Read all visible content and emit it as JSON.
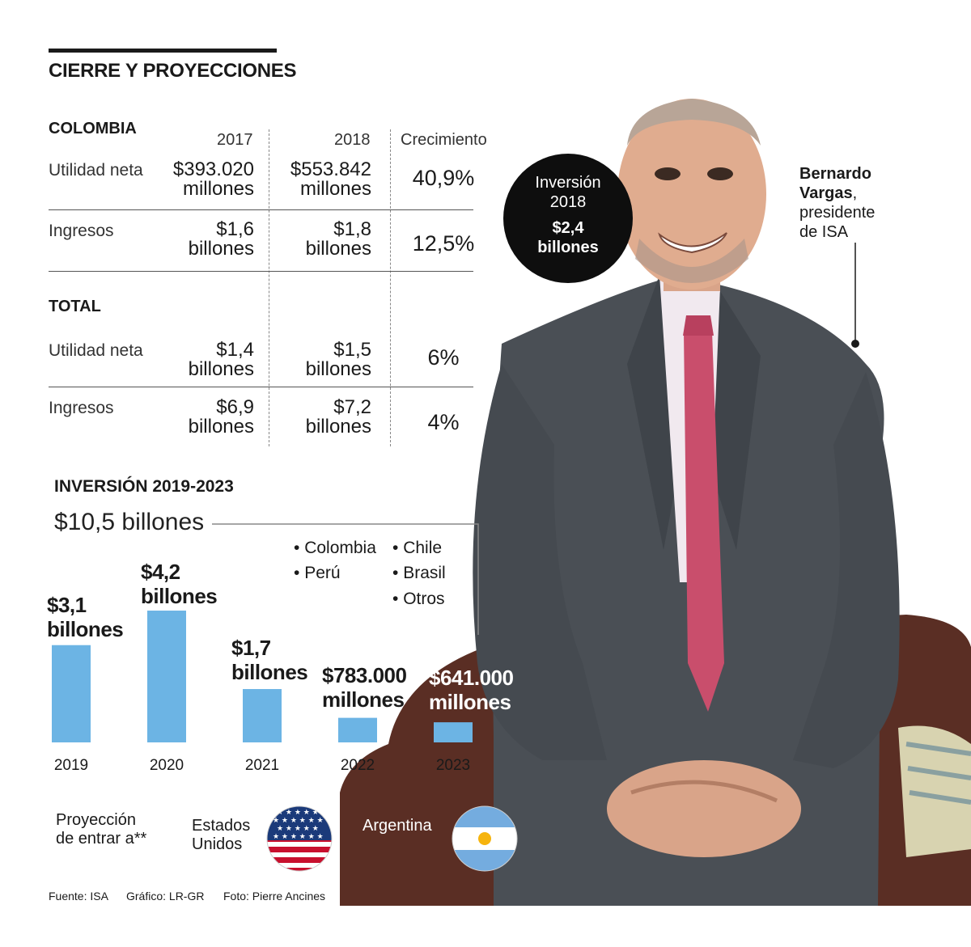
{
  "title": "CIERRE Y PROYECCIONES",
  "table": {
    "colombia_title": "COLOMBIA",
    "total_title": "TOTAL",
    "columns": [
      "2017",
      "2018",
      "Crecimiento"
    ],
    "colombia_rows": [
      {
        "label": "Utilidad neta",
        "v2017": [
          "$393.020",
          "millones"
        ],
        "v2018": [
          "$553.842",
          "millones"
        ],
        "growth": "40,9%"
      },
      {
        "label": "Ingresos",
        "v2017": [
          "$1,6",
          "billones"
        ],
        "v2018": [
          "$1,8",
          "billones"
        ],
        "growth": "12,5%"
      }
    ],
    "total_rows": [
      {
        "label": "Utilidad neta",
        "v2017": [
          "$1,4",
          "billones"
        ],
        "v2018": [
          "$1,5",
          "billones"
        ],
        "growth": "6%"
      },
      {
        "label": "Ingresos",
        "v2017": [
          "$6,9",
          "billones"
        ],
        "v2018": [
          "$7,2",
          "billones"
        ],
        "growth": "4%"
      }
    ]
  },
  "bubble": {
    "line1": "Inversión",
    "line2": "2018",
    "amount": "$2,4",
    "unit": "billones"
  },
  "person": {
    "name1": "Bernardo",
    "name2": "Vargas",
    "role1": "presidente",
    "role2": "de ISA"
  },
  "chart_data": {
    "type": "bar",
    "title": "INVERSIÓN 2019-2023",
    "total_label": "$10,5 billones",
    "categories": [
      "2019",
      "2020",
      "2021",
      "2022",
      "2023"
    ],
    "values": [
      3.1,
      4.2,
      1.7,
      0.783,
      0.641
    ],
    "unit": "billones de pesos",
    "value_labels": [
      [
        "$3,1",
        "billones"
      ],
      [
        "$4,2",
        "billones"
      ],
      [
        "$1,7",
        "billones"
      ],
      [
        "$783.000",
        "millones"
      ],
      [
        "$641.000",
        "millones"
      ]
    ],
    "bar_color": "#6cb4e4",
    "legend": [
      "Colombia",
      "Perú",
      "Chile",
      "Brasil",
      "Otros"
    ]
  },
  "projection": {
    "label1": "Proyección",
    "label2": "de entrar a**",
    "country1a": "Estados",
    "country1b": "Unidos",
    "country2": "Argentina"
  },
  "footer": {
    "source": "Fuente: ISA",
    "graphic": "Gráfico: LR-GR",
    "photo": "Foto: Pierre Ancines"
  },
  "colors": {
    "bar": "#6cb4e4",
    "bubble": "#0e0e0e",
    "suit": "#4a4f55",
    "tie": "#c94e6c",
    "sofa": "#5a2e24"
  }
}
